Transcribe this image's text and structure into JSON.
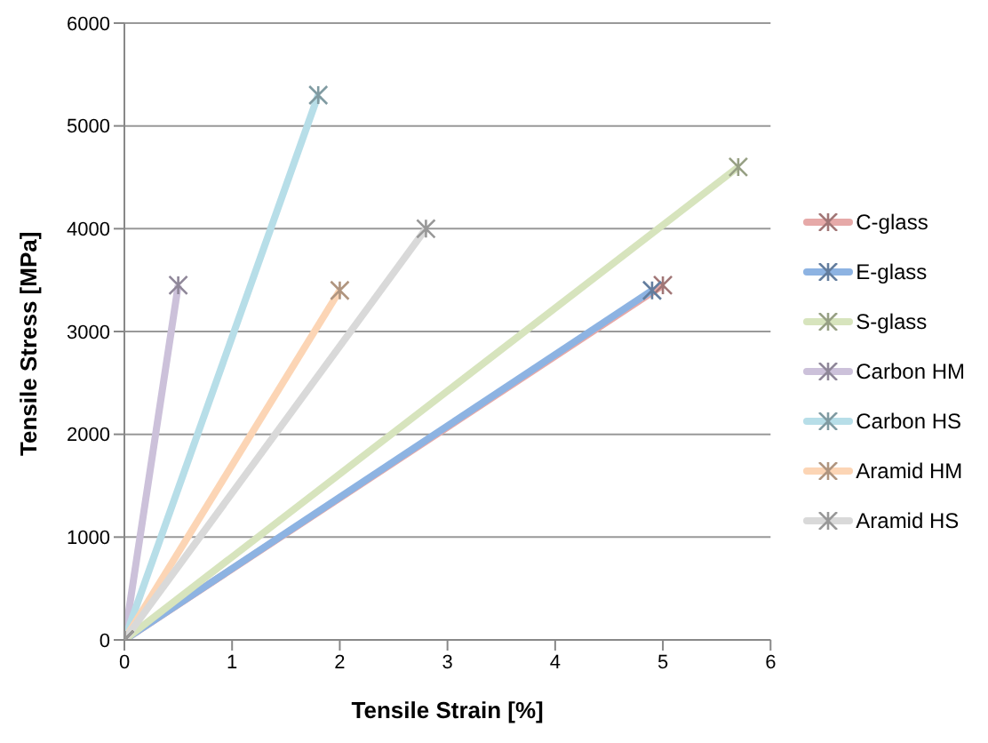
{
  "chart_data": {
    "type": "line",
    "xlabel": "Tensile Strain [%]",
    "ylabel": "Tensile Stress [MPa]",
    "xlim": [
      0,
      6
    ],
    "xticks": [
      0,
      1,
      2,
      3,
      4,
      5,
      6
    ],
    "ylim": [
      0,
      6000
    ],
    "yticks": [
      0,
      1000,
      2000,
      3000,
      4000,
      5000,
      6000
    ],
    "grid": "y",
    "legend": "right",
    "marker": "cross",
    "series": [
      {
        "name": "C-glass",
        "color": "#e6a9a8",
        "x": [
          0,
          5
        ],
        "values": [
          0,
          3450
        ]
      },
      {
        "name": "E-glass",
        "color": "#8db3e2",
        "x": [
          0,
          4.9
        ],
        "values": [
          0,
          3400
        ]
      },
      {
        "name": "S-glass",
        "color": "#d7e4bd",
        "x": [
          0,
          5.7
        ],
        "values": [
          0,
          4600
        ]
      },
      {
        "name": "Carbon HM",
        "color": "#ccc1da",
        "x": [
          0,
          0.5
        ],
        "values": [
          0,
          3450
        ]
      },
      {
        "name": "Carbon HS",
        "color": "#b7dee8",
        "x": [
          0,
          1.8
        ],
        "values": [
          0,
          5300
        ]
      },
      {
        "name": "Aramid HM",
        "color": "#fcd5b5",
        "x": [
          0,
          2
        ],
        "values": [
          0,
          3400
        ]
      },
      {
        "name": "Aramid HS",
        "color": "#d9d9d9",
        "x": [
          0,
          2.8
        ],
        "values": [
          0,
          4000
        ]
      }
    ]
  }
}
